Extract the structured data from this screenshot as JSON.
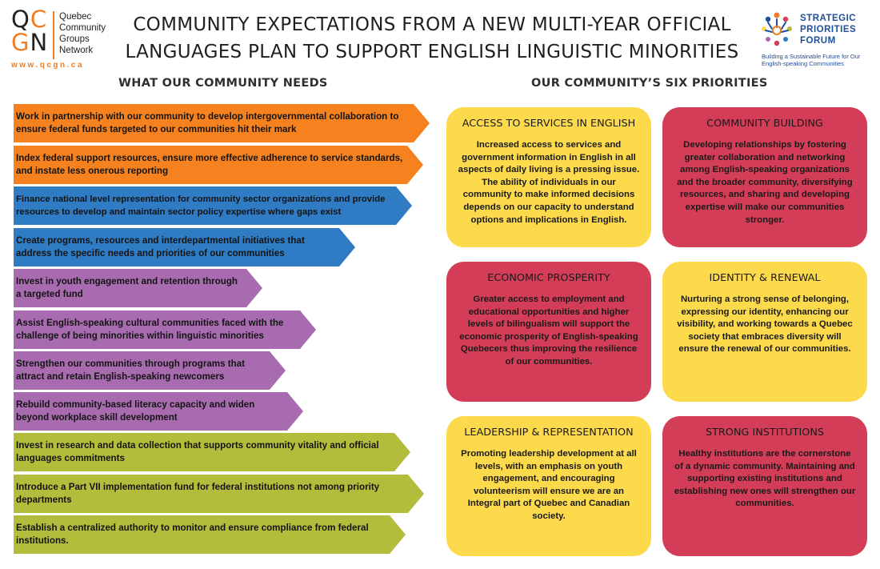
{
  "header": {
    "logo_letters": [
      "Q",
      "C",
      "G",
      "N"
    ],
    "logo_name": [
      "Quebec",
      "Community",
      "Groups",
      "Network"
    ],
    "logo_url": "www.qcgn.ca",
    "title": "COMMUNITY EXPECTATIONS FROM A NEW MULTI-YEAR OFFICIAL LANGUAGES PLAN TO SUPPORT ENGLISH LINGUISTIC MINORITIES",
    "spf_name": [
      "STRATEGIC",
      "PRIORITIES",
      "FORUM"
    ],
    "spf_tagline": "Building a Sustainable Future for Our English-speaking Communities",
    "accent_orange": "#f07d22",
    "accent_blue": "#1f4e9c"
  },
  "sections": {
    "needs_heading": "WHAT OUR COMMUNITY NEEDS",
    "priorities_heading": "OUR COMMUNITY’S SIX PRIORITIES"
  },
  "needs": [
    {
      "verb": "Work",
      "rest": " in partnership with our community to develop intergovernmental collaboration to ensure federal funds targeted to our communities hit their mark",
      "color": "#f5821f"
    },
    {
      "verb": "Index",
      "rest": " federal support resources, ensure more effective adherence to service standards, and instate less onerous reporting",
      "color": "#f5821f"
    },
    {
      "verb": "Finance",
      "rest": " national level representation for community sector organizations and provide resources to develop and maintain sector policy expertise where gaps exist",
      "color": "#2f7bc4"
    },
    {
      "verb": "Create",
      "rest": " programs, resources and interdepartmental initiatives that address the specific needs and priorities of our communities",
      "color": "#2f7bc4"
    },
    {
      "verb": "Invest",
      "rest": " in youth engagement and retention through a targeted fund",
      "color": "#a86bb0"
    },
    {
      "verb": "Assist",
      "rest": " English-speaking cultural communities faced with the challenge of being minorities within linguistic minorities",
      "color": "#a86bb0"
    },
    {
      "verb": "Strengthen",
      "rest": " our communities through programs that attract and retain English-speaking newcomers",
      "color": "#a86bb0"
    },
    {
      "verb": "Rebuild",
      "rest": " community-based literacy capacity and widen beyond workplace skill development",
      "color": "#a86bb0"
    },
    {
      "verb": "Invest",
      "rest": " in research and data collection that supports community vitality and official languages commitments",
      "color": "#b4bc3b"
    },
    {
      "verb": "Introduce",
      "rest": " a Part VII implementation fund for federal institutions not among priority departments",
      "color": "#b4bc3b"
    },
    {
      "verb": "Establish",
      "rest": " a centralized authority to monitor and ensure compliance from federal institutions.",
      "color": "#b4bc3b"
    }
  ],
  "priorities": [
    {
      "title": "ACCESS TO SERVICES IN ENGLISH",
      "body": "Increased access to services and government information in English in all aspects of daily living is a pressing issue. The ability of individuals in our community to make informed decisions depends on our capacity to understand options and implications in English.",
      "color": "#fdd94c"
    },
    {
      "title": "COMMUNITY BUILDING",
      "body": "Developing relationships by fostering greater collaboration and networking among English-speaking organizations and the broader community, diversifying resources, and sharing and developing expertise will make our communities stronger.",
      "color": "#d43d57"
    },
    {
      "title": "ECONOMIC PROSPERITY",
      "body": "Greater access to employment and educational opportunities and higher levels of bilingualism will support the economic prosperity of English-speaking Quebecers thus improving the resilience of our communities.",
      "color": "#d43d57"
    },
    {
      "title": "IDENTITY & RENEWAL",
      "body": "Nurturing a strong sense of belonging, expressing our identity, enhancing our visibility, and working towards a Quebec society that embraces diversity will ensure the renewal of our communities.",
      "color": "#fdd94c"
    },
    {
      "title": "LEADERSHIP & REPRESENTATION",
      "body": "Promoting leadership development at all levels, with an emphasis on youth engagement, and encouraging volunteerism will ensure we are an Integral part of Quebec and Canadian society.",
      "color": "#fdd94c"
    },
    {
      "title": "STRONG INSTITUTIONS",
      "body": "Healthy institutions are the cornerstone of a dynamic community. Maintaining and supporting existing institutions and establishing new ones will strengthen our communities.",
      "color": "#d43d57"
    }
  ]
}
